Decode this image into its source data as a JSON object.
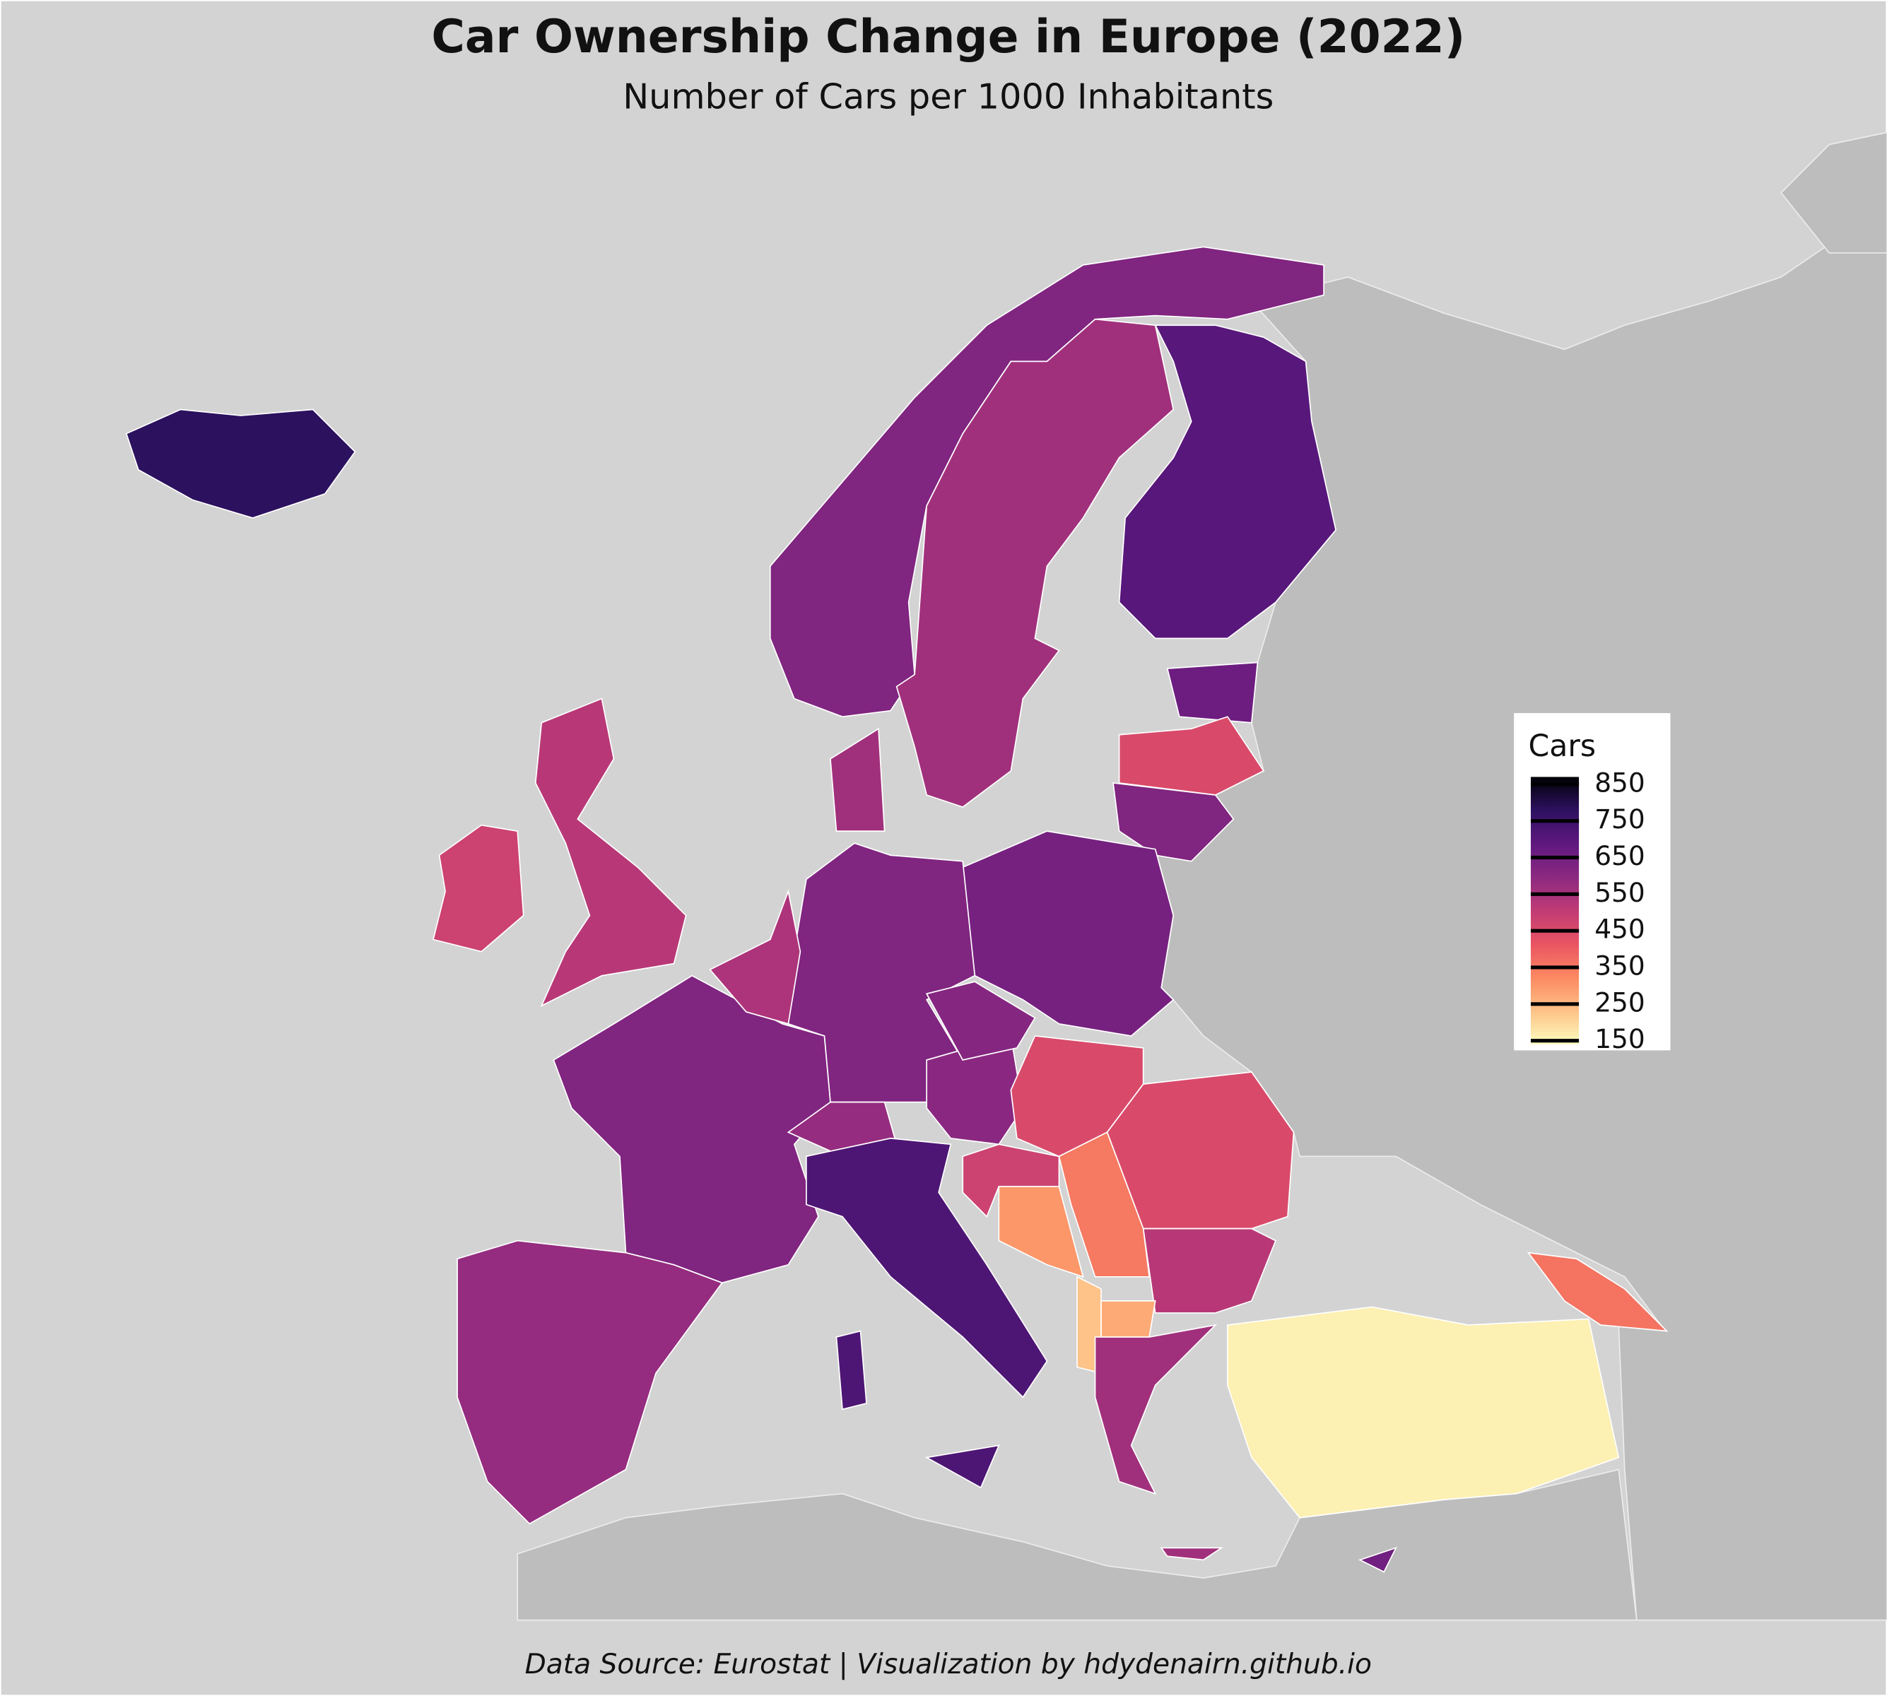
{
  "chart_data": {
    "type": "choropleth",
    "title": "Car Ownership Change in Europe (2022)",
    "subtitle": "Number of Cars per 1000 Inhabitants",
    "caption": "Data Source: Eurostat | Visualization by hdydenairn.github.io",
    "legend_title": "Cars",
    "clim": [
      140,
      870
    ],
    "ticks": [
      850,
      750,
      650,
      550,
      450,
      350,
      250,
      150
    ],
    "colors": [
      "#fcfdbf",
      "#fec287",
      "#fc8961",
      "#e95462",
      "#c13b75",
      "#8c2981",
      "#5f187f",
      "#2d1160",
      "#000004"
    ],
    "values": [
      780,
      620,
      560,
      700,
      660,
      450,
      620,
      640,
      620,
      560,
      520,
      480,
      620,
      540,
      580,
      600,
      580,
      610,
      720,
      450,
      450,
      520,
      480,
      300,
      350,
      230,
      270,
      560,
      160,
      360,
      650
    ]
  }
}
